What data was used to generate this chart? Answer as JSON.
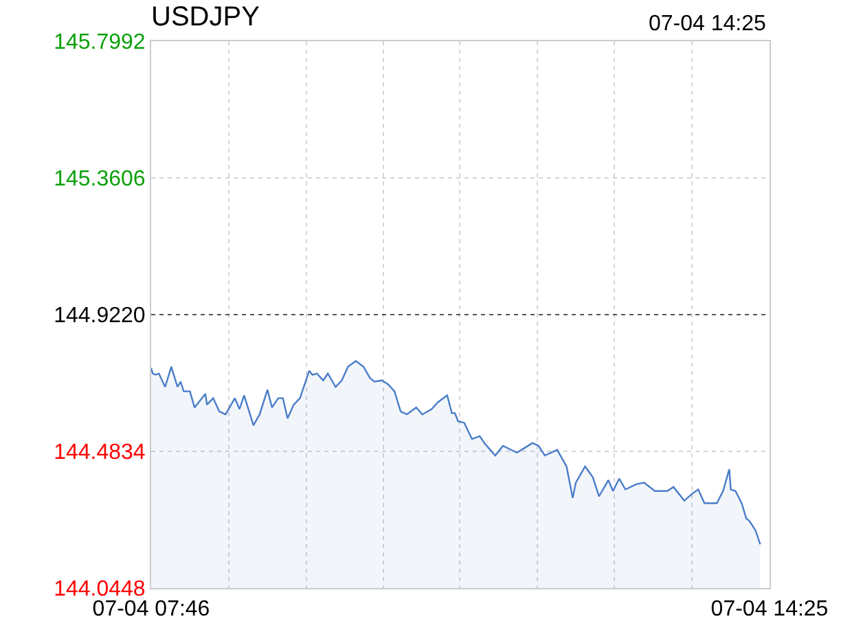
{
  "chart_data": {
    "type": "area",
    "title": "USDJPY",
    "annotations": [
      "07-04 14:25"
    ],
    "xlim": [
      "--07-04T07:46",
      "--07-04T14:25"
    ],
    "xticks": [
      {
        "value": "--07-04T07:46",
        "label": "07-04 07:46"
      },
      {
        "value": "--07-04T08:36",
        "label": null
      },
      {
        "value": "--07-04T09:26",
        "label": null
      },
      {
        "value": "--07-04T10:16",
        "label": null
      },
      {
        "value": "--07-04T11:05",
        "label": null
      },
      {
        "value": "--07-04T11:55",
        "label": null
      },
      {
        "value": "--07-04T12:45",
        "label": null
      },
      {
        "value": "--07-04T13:35",
        "label": null
      },
      {
        "value": "--07-04T14:25",
        "label": "07-04 14:25"
      }
    ],
    "ylim": [
      144.0448,
      145.7992
    ],
    "yticks": [
      144.0448,
      144.4834,
      {
        "value": 144.922,
        "label": "144.9220"
      },
      145.3606,
      145.7992
    ],
    "grid": true,
    "line_style": "solid",
    "marker": "none",
    "ref_lines": [
      {
        "axis": "y",
        "value": 144.922,
        "label": null,
        "line_style": "dotted",
        "color": "#555555"
      }
    ],
    "series": [
      {
        "color": "#4a7cc9",
        "x": [
          "--07-04T07:46",
          "--07-04T07:47",
          "--07-04T07:49",
          "--07-04T07:51",
          "--07-04T07:55",
          "--07-04T07:59",
          "--07-04T08:03",
          "--07-04T08:05",
          "--07-04T08:07",
          "--07-04T08:11",
          "--07-04T08:14",
          "--07-04T08:21",
          "--07-04T08:22",
          "--07-04T08:26",
          "--07-04T08:30",
          "--07-04T08:34",
          "--07-04T08:40",
          "--07-04T08:43",
          "--07-04T08:46",
          "--07-04T08:52",
          "--07-04T08:56",
          "--07-04T09:01",
          "--07-04T09:04",
          "--07-04T09:08",
          "--07-04T09:11",
          "--07-04T09:14",
          "--07-04T09:18",
          "--07-04T09:22",
          "--07-04T09:28",
          "--07-04T09:30",
          "--07-04T09:33",
          "--07-04T09:37",
          "--07-04T09:40",
          "--07-04T09:45",
          "--07-04T09:49",
          "--07-04T09:53",
          "--07-04T09:58",
          "--07-04T10:03",
          "--07-04T10:07",
          "--07-04T10:10",
          "--07-04T10:15",
          "--07-04T10:19",
          "--07-04T10:23",
          "--07-04T10:27",
          "--07-04T10:31",
          "--07-04T10:37",
          "--07-04T10:41",
          "--07-04T10:47",
          "--07-04T10:51",
          "--07-04T10:57",
          "--07-04T11:00",
          "--07-04T11:02",
          "--07-04T11:04",
          "--07-04T11:08",
          "--07-04T11:13",
          "--07-04T11:18",
          "--07-04T11:21",
          "--07-04T11:28",
          "--07-04T11:33",
          "--07-04T11:42",
          "--07-04T11:52",
          "--07-04T11:56",
          "--07-04T12:00",
          "--07-04T12:08",
          "--07-04T12:14",
          "--07-04T12:18",
          "--07-04T12:20",
          "--07-04T12:26",
          "--07-04T12:31",
          "--07-04T12:35",
          "--07-04T12:41",
          "--07-04T12:44",
          "--07-04T12:48",
          "--07-04T12:52",
          "--07-04T12:59",
          "--07-04T13:04",
          "--07-04T13:11",
          "--07-04T13:19",
          "--07-04T13:23",
          "--07-04T13:30",
          "--07-04T13:35",
          "--07-04T13:39",
          "--07-04T13:43",
          "--07-04T13:51",
          "--07-04T13:55",
          "--07-04T13:59",
          "--07-04T14:00",
          "--07-04T14:03",
          "--07-04T14:07",
          "--07-04T14:10",
          "--07-04T14:12",
          "--07-04T14:16",
          "--07-04T14:19"
        ],
        "values": [
          144.751,
          144.733,
          144.729,
          144.733,
          144.69,
          144.755,
          144.69,
          144.707,
          144.676,
          144.676,
          144.624,
          144.668,
          144.633,
          144.654,
          144.611,
          144.602,
          144.654,
          144.619,
          144.663,
          144.567,
          144.602,
          144.681,
          144.624,
          144.654,
          144.654,
          144.589,
          144.633,
          144.654,
          144.742,
          144.729,
          144.733,
          144.711,
          144.733,
          144.69,
          144.711,
          144.755,
          144.773,
          144.755,
          144.72,
          144.707,
          144.711,
          144.698,
          144.676,
          144.611,
          144.602,
          144.624,
          144.602,
          144.619,
          144.641,
          144.663,
          144.606,
          144.606,
          144.58,
          144.575,
          144.523,
          144.532,
          144.51,
          144.47,
          144.501,
          144.479,
          144.51,
          144.501,
          144.47,
          144.488,
          144.435,
          144.334,
          144.383,
          144.435,
          144.4,
          144.339,
          144.391,
          144.356,
          144.396,
          144.361,
          144.378,
          144.383,
          144.356,
          144.356,
          144.369,
          144.325,
          144.347,
          144.361,
          144.317,
          144.317,
          144.356,
          144.426,
          144.361,
          144.356,
          144.317,
          144.268,
          144.26,
          144.229,
          144.185
        ]
      }
    ]
  }
}
